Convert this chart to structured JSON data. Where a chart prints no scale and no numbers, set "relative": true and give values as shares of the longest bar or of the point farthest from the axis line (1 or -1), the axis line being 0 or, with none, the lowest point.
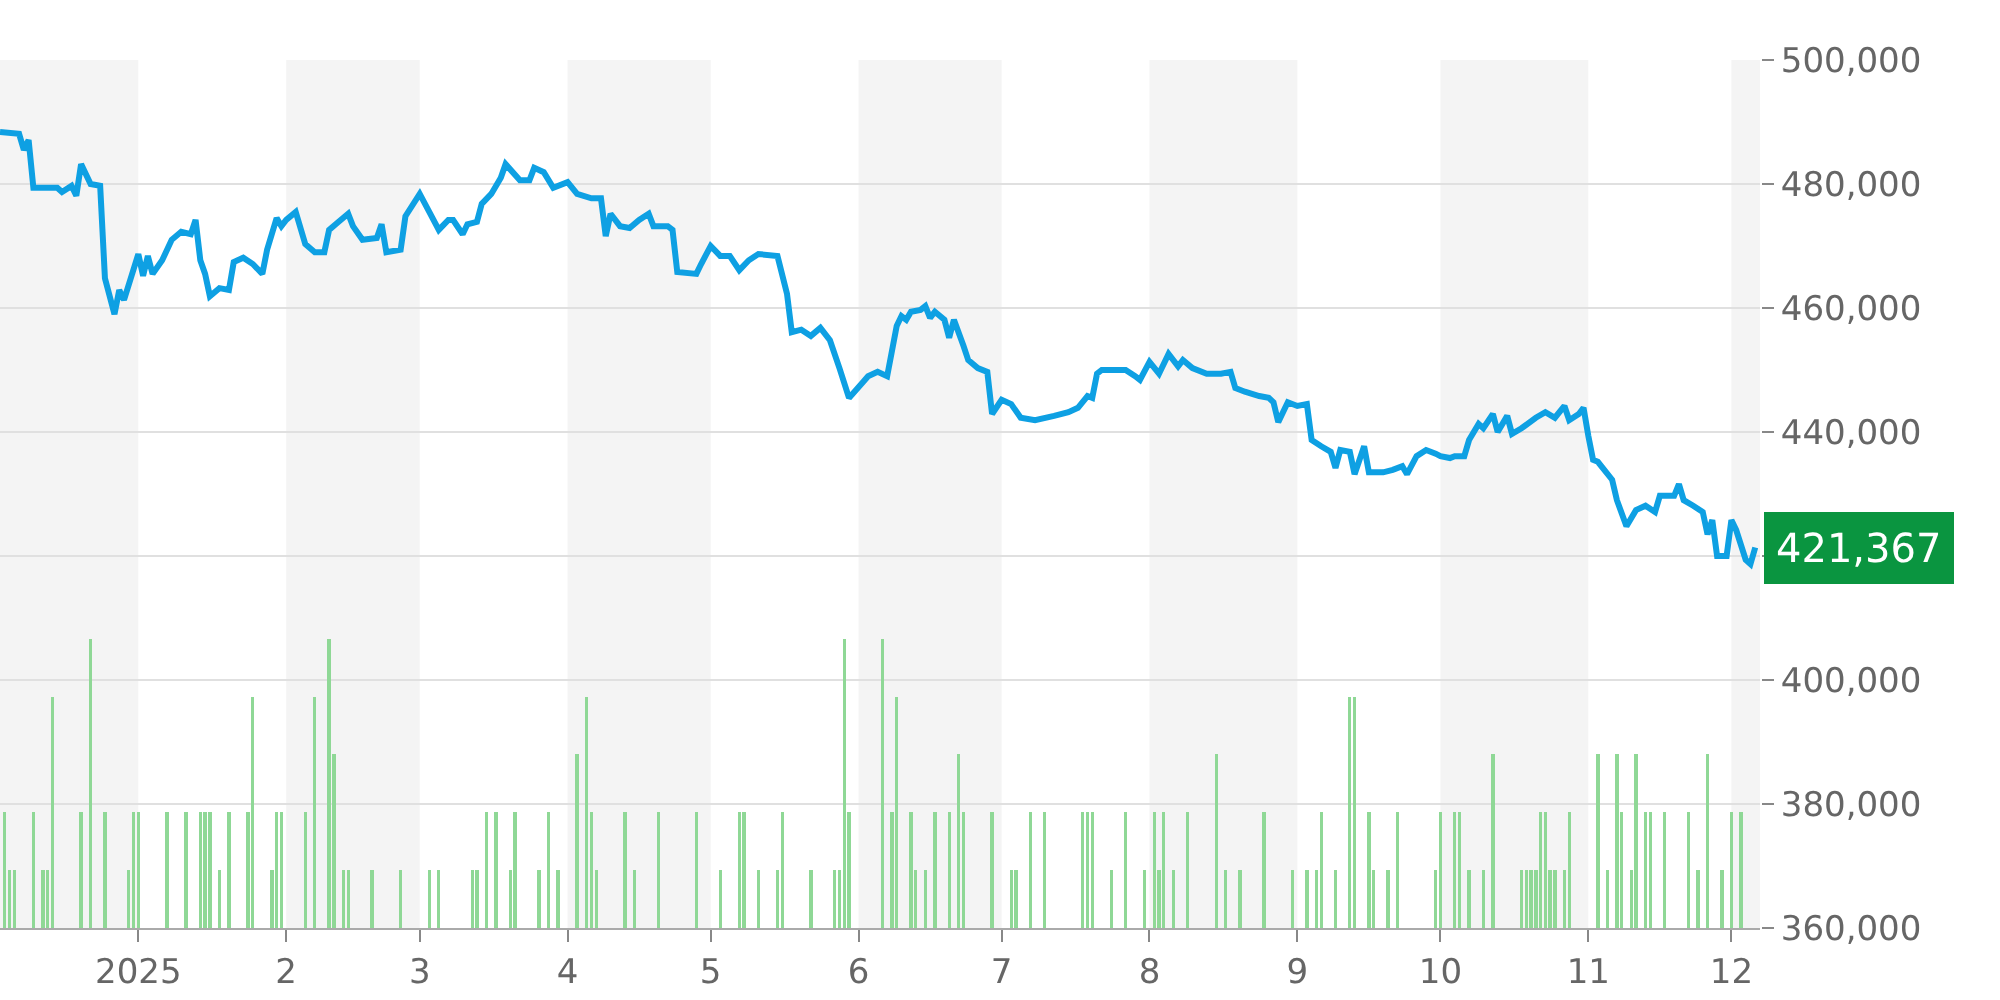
{
  "chart_data": [
    {
      "type": "line",
      "xlim": [
        "2024-12-03",
        "2025-12-07"
      ],
      "xticks": [
        {
          "value": "2025-01-01",
          "label": "2025"
        },
        {
          "value": "2025-02-01",
          "label": "2"
        },
        {
          "value": "2025-03-01",
          "label": "3"
        },
        {
          "value": "2025-04-01",
          "label": "4"
        },
        {
          "value": "2025-05-01",
          "label": "5"
        },
        {
          "value": "2025-06-01",
          "label": "6"
        },
        {
          "value": "2025-07-01",
          "label": "7"
        },
        {
          "value": "2025-08-01",
          "label": "8"
        },
        {
          "value": "2025-09-01",
          "label": "9"
        },
        {
          "value": "2025-10-01",
          "label": "10"
        },
        {
          "value": "2025-11-01",
          "label": "11"
        },
        {
          "value": "2025-12-01",
          "label": "12"
        }
      ],
      "ylim": [
        360000,
        500000
      ],
      "yticks": [
        {
          "value": 360000,
          "label": "360,000"
        },
        {
          "value": 380000,
          "label": "380,000"
        },
        {
          "value": 400000,
          "label": "400,000"
        },
        {
          "value": 420000,
          "label": null
        },
        {
          "value": 440000,
          "label": "440,000"
        },
        {
          "value": 460000,
          "label": "460,000"
        },
        {
          "value": 480000,
          "label": "480,000"
        },
        {
          "value": 500000,
          "label": "500,000"
        }
      ],
      "grid": "y",
      "legend": false,
      "marker": "none",
      "line_style": "solid",
      "bands": [
        {
          "axis": "x",
          "from": "2024-12-03",
          "to": "2025-01-01",
          "color": "#f4f4f4"
        },
        {
          "axis": "x",
          "from": "2025-02-01",
          "to": "2025-03-01",
          "color": "#f4f4f4"
        },
        {
          "axis": "x",
          "from": "2025-04-01",
          "to": "2025-05-01",
          "color": "#f4f4f4"
        },
        {
          "axis": "x",
          "from": "2025-06-01",
          "to": "2025-07-01",
          "color": "#f4f4f4"
        },
        {
          "axis": "x",
          "from": "2025-08-01",
          "to": "2025-09-01",
          "color": "#f4f4f4"
        },
        {
          "axis": "x",
          "from": "2025-10-01",
          "to": "2025-11-01",
          "color": "#f4f4f4"
        },
        {
          "axis": "x",
          "from": "2025-12-01",
          "to": "2025-12-07",
          "color": "#f4f4f4"
        }
      ],
      "annotations": [
        {
          "text": "421,367",
          "x": "2025-12-06",
          "y": 421367
        }
      ],
      "series": [
        {
          "color": "#0ea0e3",
          "x": [
            "2024-12-03",
            "2024-12-07",
            "2024-12-08",
            "2024-12-09",
            "2024-12-10",
            "2024-12-15",
            "2024-12-16",
            "2024-12-18",
            "2024-12-19",
            "2024-12-20",
            "2024-12-22",
            "2024-12-24",
            "2024-12-25",
            "2024-12-27",
            "2024-12-28",
            "2024-12-29",
            "2025-01-01",
            "2025-01-02",
            "2025-01-03",
            "2025-01-04",
            "2025-01-06",
            "2025-01-08",
            "2025-01-10",
            "2025-01-12",
            "2025-01-13",
            "2025-01-14",
            "2025-01-15",
            "2025-01-16",
            "2025-01-18",
            "2025-01-20",
            "2025-01-21",
            "2025-01-23",
            "2025-01-25",
            "2025-01-27",
            "2025-01-28",
            "2025-01-30",
            "2025-01-31",
            "2025-02-01",
            "2025-02-03",
            "2025-02-05",
            "2025-02-07",
            "2025-02-09",
            "2025-02-10",
            "2025-02-12",
            "2025-02-14",
            "2025-02-15",
            "2025-02-17",
            "2025-02-20",
            "2025-02-21",
            "2025-02-22",
            "2025-02-25",
            "2025-02-26",
            "2025-03-01",
            "2025-03-03",
            "2025-03-05",
            "2025-03-07",
            "2025-03-08",
            "2025-03-10",
            "2025-03-11",
            "2025-03-13",
            "2025-03-14",
            "2025-03-16",
            "2025-03-18",
            "2025-03-19",
            "2025-03-22",
            "2025-03-24",
            "2025-03-25",
            "2025-03-27",
            "2025-03-29",
            "2025-04-01",
            "2025-04-03",
            "2025-04-06",
            "2025-04-08",
            "2025-04-09",
            "2025-04-10",
            "2025-04-12",
            "2025-04-14",
            "2025-04-16",
            "2025-04-18",
            "2025-04-19",
            "2025-04-22",
            "2025-04-23",
            "2025-04-24",
            "2025-04-28",
            "2025-04-29",
            "2025-05-01",
            "2025-05-03",
            "2025-05-05",
            "2025-05-07",
            "2025-05-09",
            "2025-05-11",
            "2025-05-15",
            "2025-05-17",
            "2025-05-18",
            "2025-05-20",
            "2025-05-22",
            "2025-05-24",
            "2025-05-26",
            "2025-05-28",
            "2025-05-30",
            "2025-06-02",
            "2025-06-03",
            "2025-06-05",
            "2025-06-07",
            "2025-06-09",
            "2025-06-10",
            "2025-06-11",
            "2025-06-12",
            "2025-06-14",
            "2025-06-15",
            "2025-06-16",
            "2025-06-17",
            "2025-06-19",
            "2025-06-20",
            "2025-06-21",
            "2025-06-23",
            "2025-06-24",
            "2025-06-26",
            "2025-06-28",
            "2025-06-29",
            "2025-07-01",
            "2025-07-03",
            "2025-07-05",
            "2025-07-08",
            "2025-07-12",
            "2025-07-15",
            "2025-07-17",
            "2025-07-19",
            "2025-07-20",
            "2025-07-21",
            "2025-07-22",
            "2025-07-25",
            "2025-07-27",
            "2025-07-29",
            "2025-07-30",
            "2025-08-01",
            "2025-08-03",
            "2025-08-05",
            "2025-08-07",
            "2025-08-08",
            "2025-08-10",
            "2025-08-13",
            "2025-08-16",
            "2025-08-18",
            "2025-08-19",
            "2025-08-21",
            "2025-08-24",
            "2025-08-26",
            "2025-08-27",
            "2025-08-28",
            "2025-08-30",
            "2025-09-01",
            "2025-09-03",
            "2025-09-04",
            "2025-09-06",
            "2025-09-08",
            "2025-09-09",
            "2025-09-10",
            "2025-09-12",
            "2025-09-13",
            "2025-09-15",
            "2025-09-16",
            "2025-09-19",
            "2025-09-21",
            "2025-09-23",
            "2025-09-24",
            "2025-09-26",
            "2025-09-28",
            "2025-09-30",
            "2025-10-01",
            "2025-10-03",
            "2025-10-04",
            "2025-10-06",
            "2025-10-07",
            "2025-10-09",
            "2025-10-10",
            "2025-10-12",
            "2025-10-13",
            "2025-10-15",
            "2025-10-16",
            "2025-10-18",
            "2025-10-21",
            "2025-10-23",
            "2025-10-25",
            "2025-10-27",
            "2025-10-28",
            "2025-10-30",
            "2025-10-31",
            "2025-11-01",
            "2025-11-02",
            "2025-11-03",
            "2025-11-06",
            "2025-11-07",
            "2025-11-09",
            "2025-11-11",
            "2025-11-13",
            "2025-11-15",
            "2025-11-16",
            "2025-11-18",
            "2025-11-19",
            "2025-11-20",
            "2025-11-21",
            "2025-11-23",
            "2025-11-25",
            "2025-11-26",
            "2025-11-27",
            "2025-11-28",
            "2025-11-30",
            "2025-12-01",
            "2025-12-02",
            "2025-12-04",
            "2025-12-05",
            "2025-12-06"
          ],
          "values": [
            488400,
            488100,
            485500,
            487100,
            479400,
            479400,
            478700,
            479700,
            478100,
            483200,
            480000,
            479700,
            464800,
            459000,
            462900,
            461300,
            468700,
            465200,
            468400,
            465500,
            467700,
            471000,
            472300,
            471900,
            474200,
            467700,
            465500,
            461900,
            463200,
            462900,
            467400,
            468100,
            467100,
            465500,
            469400,
            474500,
            473200,
            474200,
            475500,
            470300,
            469000,
            469000,
            472600,
            473900,
            475200,
            473200,
            471000,
            471300,
            473500,
            469000,
            469400,
            474800,
            478400,
            475500,
            472600,
            474200,
            474200,
            471900,
            473500,
            473900,
            476800,
            478400,
            481000,
            483200,
            480600,
            480600,
            482600,
            481900,
            479400,
            480300,
            478400,
            477700,
            477700,
            471600,
            475200,
            473200,
            472900,
            474200,
            475200,
            473200,
            473200,
            472600,
            465800,
            465500,
            467100,
            470000,
            468400,
            468400,
            466100,
            467700,
            468700,
            468400,
            462300,
            456100,
            456500,
            455500,
            456800,
            454800,
            450300,
            445500,
            448100,
            449000,
            449700,
            449000,
            457100,
            458700,
            458100,
            459400,
            459700,
            460300,
            458400,
            459400,
            458100,
            455200,
            458100,
            453900,
            451600,
            450300,
            449700,
            442900,
            445200,
            444500,
            442300,
            441900,
            442600,
            443200,
            443900,
            445800,
            445500,
            449400,
            450000,
            450000,
            450000,
            449000,
            448400,
            451300,
            449400,
            452600,
            450600,
            451600,
            450300,
            449400,
            449400,
            449700,
            447100,
            446500,
            445800,
            445500,
            444800,
            441600,
            444800,
            444200,
            444500,
            438700,
            437700,
            436800,
            434200,
            437100,
            436800,
            433200,
            437700,
            433500,
            433500,
            433900,
            434500,
            433200,
            436100,
            437100,
            436500,
            436100,
            435800,
            436100,
            436100,
            438700,
            441300,
            440600,
            442900,
            440000,
            442600,
            439700,
            440600,
            442300,
            443200,
            442300,
            444200,
            441900,
            442900,
            443900,
            439400,
            435500,
            435200,
            432300,
            429000,
            424800,
            427400,
            428100,
            427100,
            429700,
            429700,
            429700,
            431600,
            429000,
            428100,
            427100,
            423500,
            425800,
            420000,
            420000,
            425800,
            424200,
            419400,
            418700,
            421367
          ]
        }
      ]
    },
    {
      "type": "bar",
      "relative": true,
      "color": "#8fd896",
      "xlim": [
        "2024-12-03",
        "2025-12-07"
      ],
      "x": [
        "2024-12-04",
        "2024-12-05",
        "2024-12-06",
        "2024-12-10",
        "2024-12-12",
        "2024-12-13",
        "2024-12-14",
        "2024-12-20",
        "2024-12-22",
        "2024-12-25",
        "2024-12-30",
        "2024-12-31",
        "2025-01-01",
        "2025-01-07",
        "2025-01-11",
        "2025-01-14",
        "2025-01-15",
        "2025-01-16",
        "2025-01-18",
        "2025-01-20",
        "2025-01-24",
        "2025-01-25",
        "2025-01-29",
        "2025-01-30",
        "2025-01-31",
        "2025-02-05",
        "2025-02-07",
        "2025-02-10",
        "2025-02-11",
        "2025-02-13",
        "2025-02-14",
        "2025-02-19",
        "2025-02-25",
        "2025-03-03",
        "2025-03-05",
        "2025-03-12",
        "2025-03-13",
        "2025-03-15",
        "2025-03-17",
        "2025-03-20",
        "2025-03-21",
        "2025-03-26",
        "2025-03-28",
        "2025-03-30",
        "2025-04-03",
        "2025-04-05",
        "2025-04-06",
        "2025-04-07",
        "2025-04-13",
        "2025-04-15",
        "2025-04-20",
        "2025-04-28",
        "2025-05-03",
        "2025-05-07",
        "2025-05-08",
        "2025-05-11",
        "2025-05-15",
        "2025-05-16",
        "2025-05-22",
        "2025-05-27",
        "2025-05-28",
        "2025-05-29",
        "2025-05-30",
        "2025-06-06",
        "2025-06-08",
        "2025-06-09",
        "2025-06-12",
        "2025-06-13",
        "2025-06-15",
        "2025-06-17",
        "2025-06-20",
        "2025-06-22",
        "2025-06-23",
        "2025-06-29",
        "2025-07-03",
        "2025-07-04",
        "2025-07-07",
        "2025-07-10",
        "2025-07-18",
        "2025-07-19",
        "2025-07-20",
        "2025-07-24",
        "2025-07-27",
        "2025-07-31",
        "2025-08-02",
        "2025-08-03",
        "2025-08-04",
        "2025-08-06",
        "2025-08-09",
        "2025-08-15",
        "2025-08-17",
        "2025-08-20",
        "2025-08-25",
        "2025-08-31",
        "2025-09-03",
        "2025-09-05",
        "2025-09-06",
        "2025-09-09",
        "2025-09-12",
        "2025-09-13",
        "2025-09-16",
        "2025-09-17",
        "2025-09-20",
        "2025-09-22",
        "2025-09-30",
        "2025-10-01",
        "2025-10-04",
        "2025-10-05",
        "2025-10-07",
        "2025-10-10",
        "2025-10-12",
        "2025-10-18",
        "2025-10-19",
        "2025-10-20",
        "2025-10-21",
        "2025-10-22",
        "2025-10-23",
        "2025-10-24",
        "2025-10-25",
        "2025-10-27",
        "2025-10-28",
        "2025-11-03",
        "2025-11-05",
        "2025-11-07",
        "2025-11-08",
        "2025-11-10",
        "2025-11-11",
        "2025-11-13",
        "2025-11-14",
        "2025-11-17",
        "2025-11-22",
        "2025-11-24",
        "2025-11-26",
        "2025-11-29",
        "2025-12-01",
        "2025-12-03"
      ],
      "values": [
        0.4,
        0.2,
        0.2,
        0.4,
        0.2,
        0.2,
        0.8,
        0.4,
        1,
        0.4,
        0.2,
        0.4,
        0.4,
        0.4,
        0.4,
        0.4,
        0.4,
        0.4,
        0.2,
        0.4,
        0.4,
        0.8,
        0.2,
        0.4,
        0.4,
        0.4,
        0.8,
        1,
        0.6,
        0.2,
        0.2,
        0.2,
        0.2,
        0.2,
        0.2,
        0.2,
        0.2,
        0.4,
        0.4,
        0.2,
        0.4,
        0.2,
        0.4,
        0.2,
        0.6,
        0.8,
        0.4,
        0.2,
        0.4,
        0.2,
        0.4,
        0.4,
        0.2,
        0.4,
        0.4,
        0.2,
        0.2,
        0.4,
        0.2,
        0.2,
        0.2,
        1,
        0.4,
        1,
        0.4,
        0.8,
        0.4,
        0.2,
        0.2,
        0.4,
        0.4,
        0.6,
        0.4,
        0.4,
        0.2,
        0.2,
        0.4,
        0.4,
        0.4,
        0.4,
        0.4,
        0.2,
        0.4,
        0.2,
        0.4,
        0.2,
        0.4,
        0.2,
        0.4,
        0.6,
        0.2,
        0.2,
        0.4,
        0.2,
        0.2,
        0.2,
        0.4,
        0.2,
        0.8,
        0.8,
        0.4,
        0.2,
        0.2,
        0.4,
        0.2,
        0.4,
        0.4,
        0.4,
        0.2,
        0.2,
        0.6,
        0.2,
        0.2,
        0.2,
        0.2,
        0.4,
        0.4,
        0.2,
        0.2,
        0.2,
        0.4,
        0.6,
        0.2,
        0.6,
        0.4,
        0.2,
        0.6,
        0.4,
        0.4,
        0.4,
        0.4,
        0.2,
        0.6,
        0.2,
        0.4,
        0.4
      ]
    }
  ]
}
